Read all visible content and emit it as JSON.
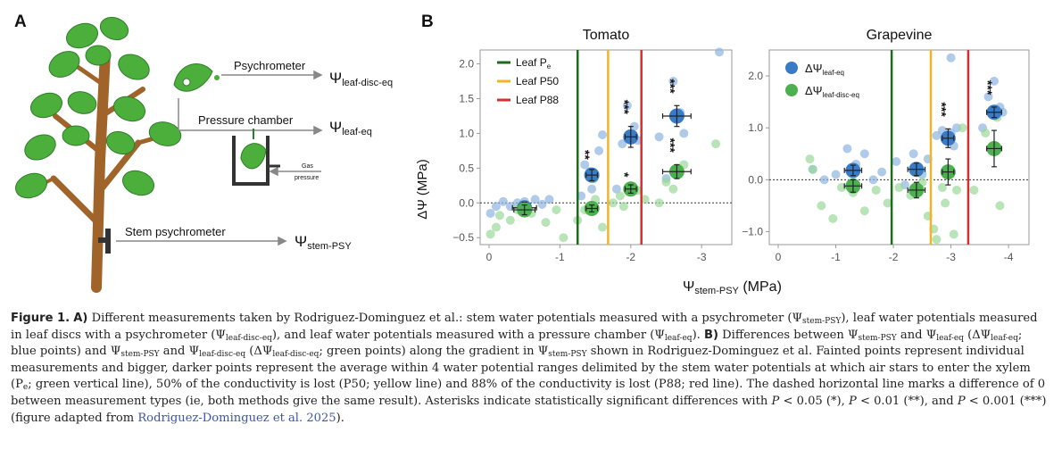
{
  "panel_a": {
    "letter": "A",
    "psychrometer_label": "Psychrometer",
    "pressure_chamber_label": "Pressure chamber",
    "stem_psychrometer_label": "Stem psychrometer",
    "gas_label_1": "Gas",
    "gas_label_2": "pressure",
    "psi_leaf_disc_eq": {
      "symbol": "Ψ",
      "sub": "leaf-disc-eq"
    },
    "psi_leaf_eq": {
      "symbol": "Ψ",
      "sub": "leaf-eq"
    },
    "psi_stem_psy": {
      "symbol": "Ψ",
      "sub": "stem-PSY"
    },
    "tree_color": "#4caf3c",
    "trunk_color": "#a0642a"
  },
  "panel_b": {
    "letter": "B",
    "ylabel": "ΔΨ (MPa)",
    "xlabel": {
      "symbol": "Ψ",
      "sub": "stem-PSY",
      "unit": " (MPa)"
    },
    "legend_lines": [
      {
        "name": "Leaf P",
        "sub": "e",
        "color": "#1e6b1e"
      },
      {
        "name": "Leaf P50",
        "sub": "",
        "color": "#f0b429"
      },
      {
        "name": "Leaf P88",
        "sub": "",
        "color": "#d62f2f"
      }
    ],
    "legend_points": [
      {
        "name": "ΔΨ",
        "sub": "leaf-eq",
        "color": "#3a7bc8"
      },
      {
        "name": "ΔΨ",
        "sub": "leaf-disc-eq",
        "color": "#4caf50"
      }
    ],
    "colors": {
      "blue_light": "#8fb4e0",
      "blue": "#3a7bc8",
      "green_light": "#9ad89a",
      "green": "#4caf50"
    }
  },
  "chart_data": [
    {
      "type": "scatter",
      "title": "Tomato",
      "xlim": [
        0,
        -3.3
      ],
      "ylim": [
        -0.6,
        2.2
      ],
      "x_ticks": [
        "0",
        "-1",
        "-2",
        "-3"
      ],
      "y_ticks": [
        "−0.5",
        "0.0",
        "0.5",
        "1.0",
        "1.5",
        "2.0"
      ],
      "vlines": {
        "Leaf Pe": -1.25,
        "Leaf P50": -1.68,
        "Leaf P88": -2.15
      },
      "series": [
        {
          "name": "ΔΨleaf-eq",
          "means": [
            {
              "x": -0.5,
              "y": -0.07,
              "xerr": 0.17,
              "yerr": 0.08,
              "sig": ""
            },
            {
              "x": -1.45,
              "y": 0.4,
              "xerr": 0.08,
              "yerr": 0.08,
              "sig": "**"
            },
            {
              "x": -2.0,
              "y": 0.95,
              "xerr": 0.08,
              "yerr": 0.15,
              "sig": "***"
            },
            {
              "x": -2.65,
              "y": 1.25,
              "xerr": 0.2,
              "yerr": 0.15,
              "sig": "***"
            }
          ],
          "points": [
            [
              -0.02,
              -0.15
            ],
            [
              -0.1,
              -0.05
            ],
            [
              -0.2,
              0.02
            ],
            [
              -0.3,
              -0.05
            ],
            [
              -0.4,
              0.0
            ],
            [
              -0.5,
              0.02
            ],
            [
              -0.55,
              -0.08
            ],
            [
              -0.65,
              0.05
            ],
            [
              -0.75,
              -0.02
            ],
            [
              -0.85,
              0.05
            ],
            [
              -1.3,
              0.1
            ],
            [
              -1.35,
              0.55
            ],
            [
              -1.42,
              0.45
            ],
            [
              -1.48,
              0.35
            ],
            [
              -1.55,
              0.75
            ],
            [
              -1.6,
              0.98
            ],
            [
              -1.45,
              0.2
            ],
            [
              -1.8,
              0.2
            ],
            [
              -1.88,
              0.85
            ],
            [
              -1.95,
              1.4
            ],
            [
              -2.05,
              1.1
            ],
            [
              -2.1,
              0.9
            ],
            [
              -2.4,
              0.95
            ],
            [
              -2.5,
              0.35
            ],
            [
              -2.6,
              1.75
            ],
            [
              -2.7,
              1.3
            ],
            [
              -2.75,
              1.0
            ],
            [
              -3.25,
              2.17
            ]
          ]
        },
        {
          "name": "ΔΨleaf-disc-eq",
          "means": [
            {
              "x": -0.5,
              "y": -0.1,
              "xerr": 0.15,
              "yerr": 0.07,
              "sig": ""
            },
            {
              "x": -1.45,
              "y": -0.08,
              "xerr": 0.08,
              "yerr": 0.05,
              "sig": ""
            },
            {
              "x": -2.0,
              "y": 0.2,
              "xerr": 0.08,
              "yerr": 0.06,
              "sig": "*"
            },
            {
              "x": -2.65,
              "y": 0.45,
              "xerr": 0.2,
              "yerr": 0.1,
              "sig": "***"
            }
          ],
          "points": [
            [
              -0.02,
              -0.45
            ],
            [
              -0.1,
              -0.35
            ],
            [
              -0.15,
              -0.18
            ],
            [
              -0.3,
              -0.25
            ],
            [
              -0.4,
              -0.1
            ],
            [
              -0.6,
              -0.15
            ],
            [
              -0.8,
              -0.28
            ],
            [
              -0.95,
              -0.1
            ],
            [
              -1.05,
              -0.5
            ],
            [
              -1.25,
              -0.25
            ],
            [
              -1.35,
              -0.1
            ],
            [
              -1.5,
              0.05
            ],
            [
              -1.6,
              -0.35
            ],
            [
              -1.75,
              0.0
            ],
            [
              -1.85,
              0.1
            ],
            [
              -1.9,
              -0.05
            ],
            [
              -2.1,
              0.18
            ],
            [
              -2.2,
              0.05
            ],
            [
              -2.4,
              0.0
            ],
            [
              -2.5,
              0.3
            ],
            [
              -2.6,
              0.2
            ],
            [
              -2.75,
              0.55
            ],
            [
              -3.2,
              0.85
            ]
          ]
        }
      ]
    },
    {
      "type": "scatter",
      "title": "Grapevine",
      "xlim": [
        0,
        -4.2
      ],
      "ylim": [
        -1.25,
        2.5
      ],
      "x_ticks": [
        "0",
        "-1",
        "-2",
        "-3",
        "-4"
      ],
      "y_ticks": [
        "−1.0",
        "0.0",
        "1.0",
        "2.0"
      ],
      "vlines": {
        "Leaf Pe": -1.97,
        "Leaf P50": -2.65,
        "Leaf P88": -3.3
      },
      "series": [
        {
          "name": "ΔΨleaf-eq",
          "means": [
            {
              "x": -1.3,
              "y": 0.18,
              "xerr": 0.15,
              "yerr": 0.1,
              "sig": ""
            },
            {
              "x": -2.4,
              "y": 0.2,
              "xerr": 0.15,
              "yerr": 0.12,
              "sig": ""
            },
            {
              "x": -2.95,
              "y": 0.8,
              "xerr": 0.1,
              "yerr": 0.18,
              "sig": "***"
            },
            {
              "x": -3.75,
              "y": 1.3,
              "xerr": 0.13,
              "yerr": 0.1,
              "sig": "***"
            }
          ],
          "points": [
            [
              -0.6,
              0.2
            ],
            [
              -0.8,
              0.0
            ],
            [
              -1.0,
              0.1
            ],
            [
              -1.2,
              0.6
            ],
            [
              -1.35,
              0.3
            ],
            [
              -1.5,
              0.5
            ],
            [
              -1.65,
              0.0
            ],
            [
              -1.8,
              0.15
            ],
            [
              -2.05,
              0.35
            ],
            [
              -2.2,
              -0.1
            ],
            [
              -2.35,
              0.5
            ],
            [
              -2.5,
              0.1
            ],
            [
              -2.6,
              0.4
            ],
            [
              -2.75,
              0.85
            ],
            [
              -2.85,
              0.95
            ],
            [
              -3.0,
              0.9
            ],
            [
              -3.05,
              0.65
            ],
            [
              -3.1,
              1.0
            ],
            [
              -3.0,
              2.35
            ],
            [
              -3.65,
              1.6
            ],
            [
              -3.75,
              1.9
            ],
            [
              -3.85,
              1.4
            ],
            [
              -3.9,
              1.3
            ],
            [
              -3.55,
              1.0
            ]
          ]
        },
        {
          "name": "ΔΨleaf-disc-eq",
          "means": [
            {
              "x": -1.3,
              "y": -0.12,
              "xerr": 0.15,
              "yerr": 0.12,
              "sig": ""
            },
            {
              "x": -2.4,
              "y": -0.2,
              "xerr": 0.15,
              "yerr": 0.15,
              "sig": ""
            },
            {
              "x": -2.95,
              "y": 0.15,
              "xerr": 0.1,
              "yerr": 0.25,
              "sig": ""
            },
            {
              "x": -3.75,
              "y": 0.6,
              "xerr": 0.13,
              "yerr": 0.35,
              "sig": ""
            }
          ],
          "points": [
            [
              -0.55,
              0.4
            ],
            [
              -0.6,
              0.2
            ],
            [
              -0.75,
              -0.5
            ],
            [
              -0.95,
              -0.75
            ],
            [
              -1.1,
              -0.15
            ],
            [
              -1.3,
              -0.25
            ],
            [
              -1.5,
              -0.6
            ],
            [
              -1.7,
              -0.2
            ],
            [
              -1.9,
              -0.45
            ],
            [
              -2.1,
              -0.15
            ],
            [
              -2.3,
              -0.3
            ],
            [
              -2.5,
              -0.05
            ],
            [
              -2.6,
              -0.7
            ],
            [
              -2.7,
              -0.95
            ],
            [
              -2.75,
              -1.15
            ],
            [
              -2.85,
              -0.15
            ],
            [
              -2.9,
              -0.45
            ],
            [
              -3.05,
              -1.05
            ],
            [
              -3.1,
              -0.2
            ],
            [
              -3.2,
              1.0
            ],
            [
              -3.4,
              -0.2
            ],
            [
              -3.6,
              0.9
            ],
            [
              -3.85,
              -0.5
            ],
            [
              -3.8,
              1.2
            ]
          ]
        }
      ]
    }
  ],
  "caption": {
    "fig_label": "Figure 1.",
    "a_label": "A)",
    "text_1": " Different measurements taken by Rodriguez-Dominguez et al.: stem water potentials measured with a psychrometer (",
    "psi_stem_psy": "Ψ",
    "psi_stem_psy_sub": "stem-PSY",
    "text_2": "), leaf water potentials measured in leaf discs with a psychrometer (",
    "psi_leaf_disc": "Ψ",
    "psi_leaf_disc_sub": "leaf-disc-eq",
    "text_3": "), and leaf water potentials measured with a pressure chamber (",
    "psi_leaf_eq": "Ψ",
    "psi_leaf_eq_sub": "leaf-eq",
    "text_4": "). ",
    "b_label": "B)",
    "text_5": " Differences between ",
    "d1_a": "Ψ",
    "d1_a_sub": "stem-PSY",
    "text_6": " and ",
    "d1_b": "Ψ",
    "d1_b_sub": "leaf-eq",
    "text_7": " (",
    "d1_c": "ΔΨ",
    "d1_c_sub": "leaf-eq",
    "text_8": "; blue points) and ",
    "d2_a": "Ψ",
    "d2_a_sub": "stem-PSY",
    "text_9": " and ",
    "d2_b": "Ψ",
    "d2_b_sub": "leaf-disc-eq",
    "text_10": " (",
    "d2_c": "ΔΨ",
    "d2_c_sub": "leaf-disc-eq",
    "text_11": "; green points) along the gradient in ",
    "d3": "Ψ",
    "d3_sub": "stem-PSY",
    "text_12": " shown in Rodriguez-Dominguez et al. Fainted points represent individual measurements and bigger, darker points represent the average within 4 water potential ranges delimited by the stem water potentials at which air stars to enter the xylem (P",
    "pe_sub": "e",
    "text_13": "; green vertical line), 50% of the conductivity is lost (P50; yellow line) and 88% of the conductivity is lost (P88; red line). The dashed horizontal line marks a difference of 0 between measurement types (ie, both methods give the same result). Asterisks indicate statistically significant differences with ",
    "p1": "P",
    "text_14": " < 0.05 (*), ",
    "p2": "P",
    "text_15": " < 0.01 (**), and ",
    "p3": "P",
    "text_16": " < 0.001 (***) (figure adapted from ",
    "ref_link": "Rodriguez-Dominguez et al. 2025",
    "text_17": ")."
  }
}
